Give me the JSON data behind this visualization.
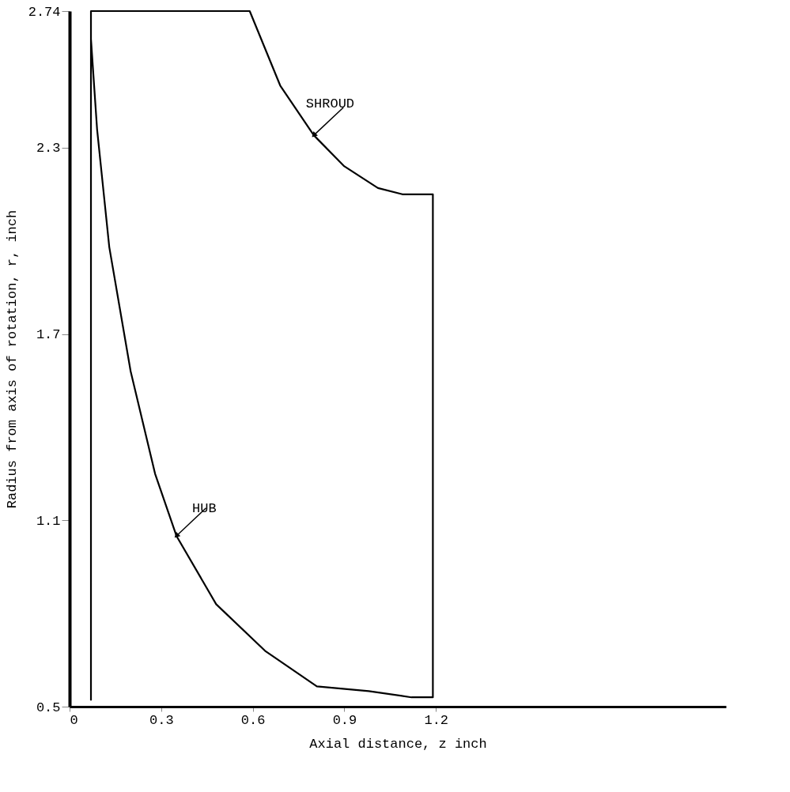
{
  "chart_data": {
    "type": "line",
    "xlabel": "Axial distance, z inch",
    "ylabel": "Radius from axis of rotation, r, inch",
    "xlim": [
      0,
      2.15
    ],
    "xticks": [
      0,
      0.3,
      0.6,
      0.9,
      1.2
    ],
    "ylim": [
      0.5,
      2.74
    ],
    "yticks": [
      0.5,
      1.1,
      1.7,
      2.3,
      {
        "value": 2.74,
        "label": "2.74"
      }
    ],
    "grid": false,
    "legend": false,
    "marker": "none",
    "line_style": "solid",
    "series": [
      {
        "color": "#000000",
        "x": [
          0.07,
          0.07,
          0.59,
          0.69,
          0.8,
          0.9,
          1.01,
          1.09,
          1.19,
          1.19,
          1.12,
          0.98,
          0.81,
          0.64,
          0.48,
          0.35,
          0.28,
          0.2,
          0.13,
          0.09,
          0.07,
          0.07
        ],
        "values": [
          0.52,
          2.74,
          2.74,
          2.5,
          2.34,
          2.24,
          2.17,
          2.15,
          2.15,
          0.53,
          0.53,
          0.55,
          0.565,
          0.68,
          0.83,
          1.05,
          1.25,
          1.58,
          1.98,
          2.36,
          2.65,
          2.74
        ]
      }
    ],
    "annotations": [
      {
        "text": "SHROUD",
        "x": 0.8,
        "y": 2.34
      },
      {
        "text": "HUB",
        "x": 0.35,
        "y": 1.05
      }
    ]
  }
}
